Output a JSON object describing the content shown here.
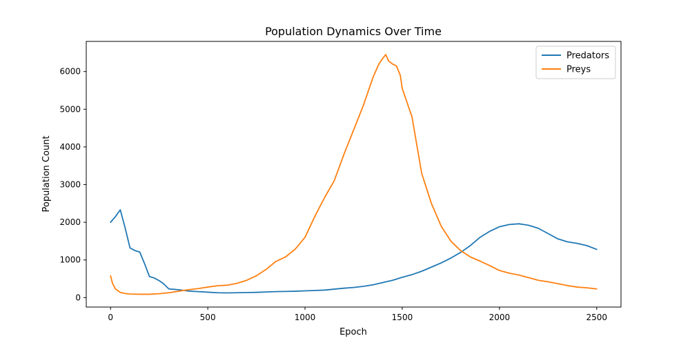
{
  "chart_data": {
    "type": "line",
    "title": "Population Dynamics Over Time",
    "xlabel": "Epoch",
    "ylabel": "Population Count",
    "xlim": [
      -125,
      2625
    ],
    "ylim": [
      -250,
      6800
    ],
    "xticks": [
      0,
      500,
      1000,
      1500,
      2000,
      2500
    ],
    "yticks": [
      0,
      1000,
      2000,
      3000,
      4000,
      5000,
      6000
    ],
    "grid": false,
    "legend_position": "top-right",
    "series": [
      {
        "name": "Predators",
        "color": "#1f77b4",
        "points": [
          [
            0,
            2000
          ],
          [
            25,
            2150
          ],
          [
            50,
            2330
          ],
          [
            75,
            1850
          ],
          [
            100,
            1320
          ],
          [
            125,
            1250
          ],
          [
            150,
            1210
          ],
          [
            175,
            900
          ],
          [
            200,
            560
          ],
          [
            225,
            520
          ],
          [
            250,
            450
          ],
          [
            270,
            380
          ],
          [
            300,
            230
          ],
          [
            350,
            210
          ],
          [
            400,
            175
          ],
          [
            450,
            160
          ],
          [
            500,
            145
          ],
          [
            550,
            130
          ],
          [
            600,
            125
          ],
          [
            650,
            130
          ],
          [
            700,
            135
          ],
          [
            750,
            140
          ],
          [
            800,
            150
          ],
          [
            850,
            160
          ],
          [
            900,
            165
          ],
          [
            950,
            170
          ],
          [
            1000,
            180
          ],
          [
            1050,
            190
          ],
          [
            1100,
            200
          ],
          [
            1150,
            225
          ],
          [
            1200,
            250
          ],
          [
            1250,
            270
          ],
          [
            1300,
            300
          ],
          [
            1350,
            340
          ],
          [
            1400,
            400
          ],
          [
            1450,
            460
          ],
          [
            1500,
            540
          ],
          [
            1550,
            610
          ],
          [
            1600,
            700
          ],
          [
            1650,
            810
          ],
          [
            1700,
            920
          ],
          [
            1750,
            1050
          ],
          [
            1800,
            1200
          ],
          [
            1850,
            1380
          ],
          [
            1900,
            1600
          ],
          [
            1950,
            1760
          ],
          [
            2000,
            1880
          ],
          [
            2050,
            1940
          ],
          [
            2100,
            1960
          ],
          [
            2150,
            1920
          ],
          [
            2200,
            1840
          ],
          [
            2250,
            1700
          ],
          [
            2300,
            1560
          ],
          [
            2350,
            1480
          ],
          [
            2400,
            1440
          ],
          [
            2450,
            1380
          ],
          [
            2500,
            1280
          ]
        ]
      },
      {
        "name": "Preys",
        "color": "#ff7f0e",
        "points": [
          [
            0,
            580
          ],
          [
            10,
            380
          ],
          [
            25,
            230
          ],
          [
            50,
            140
          ],
          [
            75,
            110
          ],
          [
            100,
            95
          ],
          [
            150,
            90
          ],
          [
            200,
            90
          ],
          [
            250,
            105
          ],
          [
            300,
            130
          ],
          [
            350,
            170
          ],
          [
            400,
            210
          ],
          [
            450,
            240
          ],
          [
            500,
            280
          ],
          [
            550,
            315
          ],
          [
            600,
            330
          ],
          [
            650,
            380
          ],
          [
            700,
            460
          ],
          [
            750,
            580
          ],
          [
            800,
            750
          ],
          [
            850,
            960
          ],
          [
            900,
            1080
          ],
          [
            950,
            1290
          ],
          [
            1000,
            1600
          ],
          [
            1050,
            2150
          ],
          [
            1100,
            2650
          ],
          [
            1150,
            3100
          ],
          [
            1200,
            3800
          ],
          [
            1250,
            4450
          ],
          [
            1300,
            5100
          ],
          [
            1350,
            5850
          ],
          [
            1380,
            6200
          ],
          [
            1400,
            6350
          ],
          [
            1415,
            6450
          ],
          [
            1430,
            6280
          ],
          [
            1450,
            6200
          ],
          [
            1470,
            6150
          ],
          [
            1490,
            5900
          ],
          [
            1500,
            5550
          ],
          [
            1550,
            4800
          ],
          [
            1600,
            3300
          ],
          [
            1650,
            2500
          ],
          [
            1700,
            1900
          ],
          [
            1750,
            1500
          ],
          [
            1800,
            1250
          ],
          [
            1850,
            1080
          ],
          [
            1900,
            970
          ],
          [
            1950,
            850
          ],
          [
            2000,
            720
          ],
          [
            2050,
            650
          ],
          [
            2100,
            600
          ],
          [
            2150,
            530
          ],
          [
            2200,
            460
          ],
          [
            2250,
            420
          ],
          [
            2300,
            370
          ],
          [
            2350,
            320
          ],
          [
            2400,
            280
          ],
          [
            2450,
            260
          ],
          [
            2500,
            230
          ]
        ]
      }
    ]
  }
}
